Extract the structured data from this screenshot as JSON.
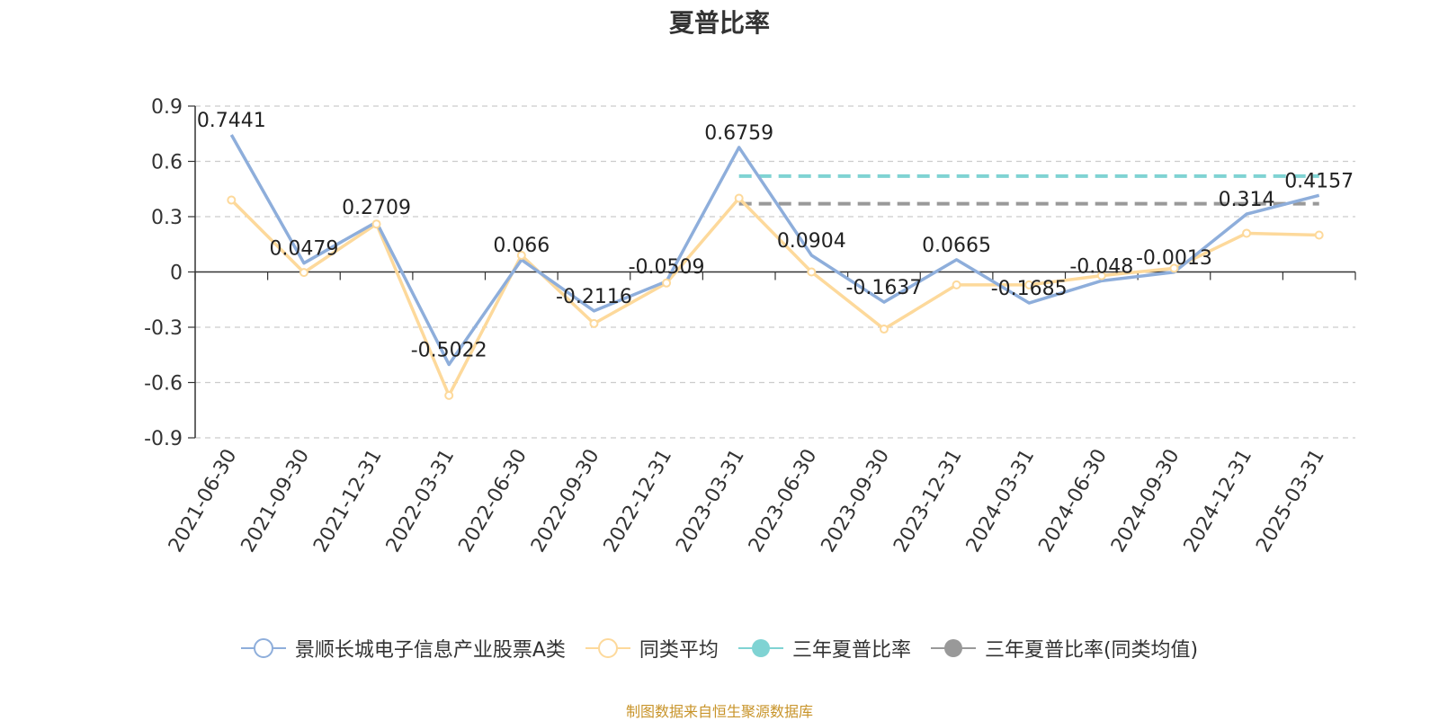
{
  "chart_data": {
    "type": "line",
    "title": "夏普比率",
    "categories": [
      "2021-06-30",
      "2021-09-30",
      "2021-12-31",
      "2022-03-31",
      "2022-06-30",
      "2022-09-30",
      "2022-12-31",
      "2023-03-31",
      "2023-06-30",
      "2023-09-30",
      "2023-12-31",
      "2024-03-31",
      "2024-06-30",
      "2024-09-30",
      "2024-12-31",
      "2025-03-31"
    ],
    "yticks": [
      "0.9",
      "0.6",
      "0.3",
      "0",
      "-0.3",
      "-0.6",
      "-0.9"
    ],
    "ylim": [
      -0.9,
      0.9
    ],
    "grid": true,
    "legend_position": "bottom",
    "series": [
      {
        "name": "景顺长城电子信息产业股票A类",
        "color": "#8eaedb",
        "values": [
          0.7441,
          0.0479,
          0.2709,
          -0.5022,
          0.066,
          -0.2116,
          -0.0509,
          0.6759,
          0.0904,
          -0.1637,
          0.0665,
          -0.1685,
          -0.048,
          -0.0013,
          0.314,
          0.4157
        ],
        "labels": [
          "0.7441",
          "0.0479",
          "0.2709",
          "-0.5022",
          "0.066",
          "-0.2116",
          "-0.0509",
          "0.6759",
          "0.0904",
          "-0.1637",
          "0.0665",
          "-0.1685",
          "-0.048",
          "-0.0013",
          "0.314",
          "0.4157"
        ]
      },
      {
        "name": "同类平均",
        "color": "#fdd99b",
        "values": [
          0.39,
          -0.003,
          0.26,
          -0.67,
          0.09,
          -0.28,
          -0.06,
          0.4,
          0.0,
          -0.31,
          -0.07,
          -0.07,
          -0.02,
          0.02,
          0.21,
          0.2
        ]
      }
    ],
    "reference_lines": [
      {
        "name": "三年夏普比率",
        "color": "#7fd3d3",
        "value": 0.52,
        "from": "2023-03-31",
        "to": "2025-03-31"
      },
      {
        "name": "三年夏普比率(同类均值)",
        "color": "#999999",
        "value": 0.37,
        "from": "2023-03-31",
        "to": "2025-03-31"
      }
    ]
  },
  "legend": [
    {
      "name": "景顺长城电子信息产业股票A类",
      "color": "#8eaedb",
      "marker": "hollow-circle"
    },
    {
      "name": "同类平均",
      "color": "#fdd99b",
      "marker": "hollow-circle"
    },
    {
      "name": "三年夏普比率",
      "color": "#7fd3d3",
      "marker": "filled-circle"
    },
    {
      "name": "三年夏普比率(同类均值)",
      "color": "#999999",
      "marker": "filled-circle"
    }
  ],
  "source_note": "制图数据来自恒生聚源数据库"
}
